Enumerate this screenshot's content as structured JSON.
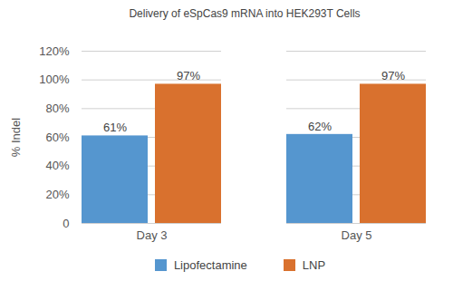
{
  "chart_data": {
    "type": "bar",
    "title": "Delivery of eSpCas9 mRNA into HEK293T Cells",
    "y_label": "% Indel",
    "categories": [
      "Day 3",
      "Day 5"
    ],
    "series": [
      {
        "name": "Lipofectamine",
        "color": "#5596cf",
        "values": [
          61,
          62
        ],
        "value_labels": [
          "61%",
          "62%"
        ]
      },
      {
        "name": "LNP",
        "color": "#d9712e",
        "values": [
          97,
          97
        ],
        "value_labels": [
          "97%",
          "97%"
        ]
      }
    ],
    "ylim": [
      0,
      120
    ],
    "yticks": [
      0,
      {
        "value": 20,
        "label": "20%"
      },
      {
        "value": 40,
        "label": "40%"
      },
      {
        "value": 60,
        "label": "60%"
      },
      {
        "value": 80,
        "label": "80%"
      },
      {
        "value": 100,
        "label": "100%"
      },
      {
        "value": 120,
        "label": "120%"
      }
    ],
    "grid": true,
    "data_labels": true,
    "legend": "bottom"
  }
}
